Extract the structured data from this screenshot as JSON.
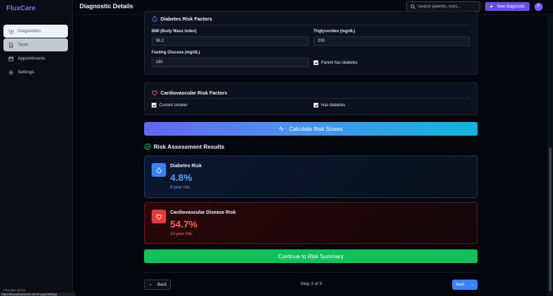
{
  "app": {
    "logo": "FluxCare",
    "version": "FluxCare v3.0.0",
    "status_url": "https://kovashackn25.vercel.app/settings"
  },
  "sidebar": {
    "items": [
      {
        "label": "Diagnostics",
        "icon": "stethoscope-icon"
      },
      {
        "label": "Tests",
        "icon": "document-icon"
      },
      {
        "label": "Appointments",
        "icon": "calendar-icon"
      },
      {
        "label": "Settings",
        "icon": "gear-icon"
      }
    ]
  },
  "header": {
    "title": "Diagnostic Details",
    "search_placeholder": "Search patients, tests...",
    "new_button": "New diagnostic",
    "avatar_initial": "F"
  },
  "diabetes_factors": {
    "title": "Diabetes Risk Factors",
    "bmi_label": "BMI (Body Mass Index)",
    "bmi_value": "36.1",
    "triglycerides_label": "Triglycerides (mg/dL)",
    "triglycerides_value": "200",
    "glucose_label": "Fasting Glucose (mg/dL)",
    "glucose_value": "180",
    "parent_diabetes_label": "Parent has diabetes",
    "parent_diabetes_checked": true
  },
  "cardio_factors": {
    "title": "Cardiovascular Risk Factors",
    "smoker_label": "Current smoker",
    "smoker_checked": true,
    "has_diabetes_label": "Has diabetes",
    "has_diabetes_checked": true
  },
  "calculate_button": "Calculate Risk Scores",
  "results": {
    "title": "Risk Assessment Results",
    "diabetes": {
      "name": "Diabetes Risk",
      "value": "4.8%",
      "sub": "8-year risk:",
      "color": "#5aa2f7"
    },
    "cardio": {
      "name": "Cardiovascular Disease Risk",
      "value": "54.7%",
      "sub": "10-year risk:",
      "color": "#f26565"
    }
  },
  "continue_button": "Continue to Risk Summary",
  "footer": {
    "back": "Back",
    "step": "Step 3 of 5",
    "next": "Next"
  }
}
